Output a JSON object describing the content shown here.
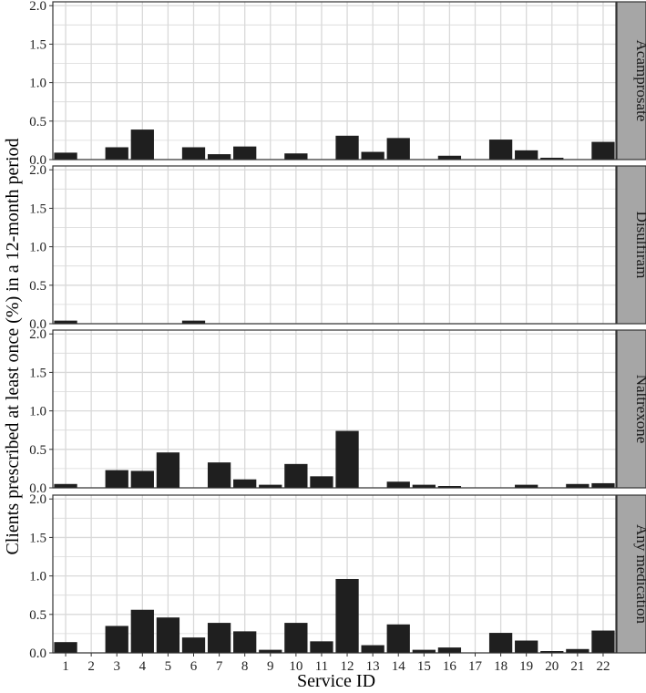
{
  "chart_data": {
    "type": "bar",
    "xlabel": "Service ID",
    "ylabel": "Clients prescribed at least once (%) in a 12-month period",
    "categories": [
      "1",
      "2",
      "3",
      "4",
      "5",
      "6",
      "7",
      "8",
      "9",
      "10",
      "11",
      "12",
      "13",
      "14",
      "15",
      "16",
      "17",
      "18",
      "19",
      "20",
      "21",
      "22"
    ],
    "ylim": [
      0,
      2.05
    ],
    "yticks": [
      0.0,
      0.5,
      1.0,
      1.5,
      2.0
    ],
    "ytick_labels": [
      "0.0",
      "0.5",
      "1.0",
      "1.5",
      "2.0"
    ],
    "grid": true,
    "facet_strip": "right",
    "series": [
      {
        "name": "Acamprosate",
        "values": [
          0.09,
          0,
          0.16,
          0.39,
          0,
          0.16,
          0.07,
          0.17,
          0,
          0.08,
          0,
          0.31,
          0.1,
          0.28,
          0,
          0.05,
          0,
          0.26,
          0.12,
          0.02,
          0,
          0.23
        ]
      },
      {
        "name": "Disulfiram",
        "values": [
          0.04,
          0,
          0,
          0,
          0,
          0.04,
          0,
          0,
          0,
          0,
          0,
          0,
          0,
          0,
          0,
          0,
          0,
          0,
          0,
          0,
          0,
          0
        ]
      },
      {
        "name": "Naltrexone",
        "values": [
          0.05,
          0,
          0.23,
          0.22,
          0.46,
          0,
          0.33,
          0.11,
          0.04,
          0.31,
          0.15,
          0.74,
          0,
          0.08,
          0.04,
          0.02,
          0,
          0,
          0.04,
          0,
          0.05,
          0.06
        ]
      },
      {
        "name": "Any medication",
        "values": [
          0.14,
          0,
          0.35,
          0.56,
          0.46,
          0.2,
          0.39,
          0.28,
          0.04,
          0.39,
          0.15,
          0.96,
          0.1,
          0.37,
          0.04,
          0.07,
          0,
          0.26,
          0.16,
          0.02,
          0.05,
          0.29
        ]
      }
    ]
  },
  "colors": {
    "bar": "#1f1f1f",
    "grid": "#d9d9d9",
    "panel_border": "#333333",
    "strip_fill": "#a6a6a6",
    "strip_border": "#333333",
    "background": "#ffffff"
  }
}
